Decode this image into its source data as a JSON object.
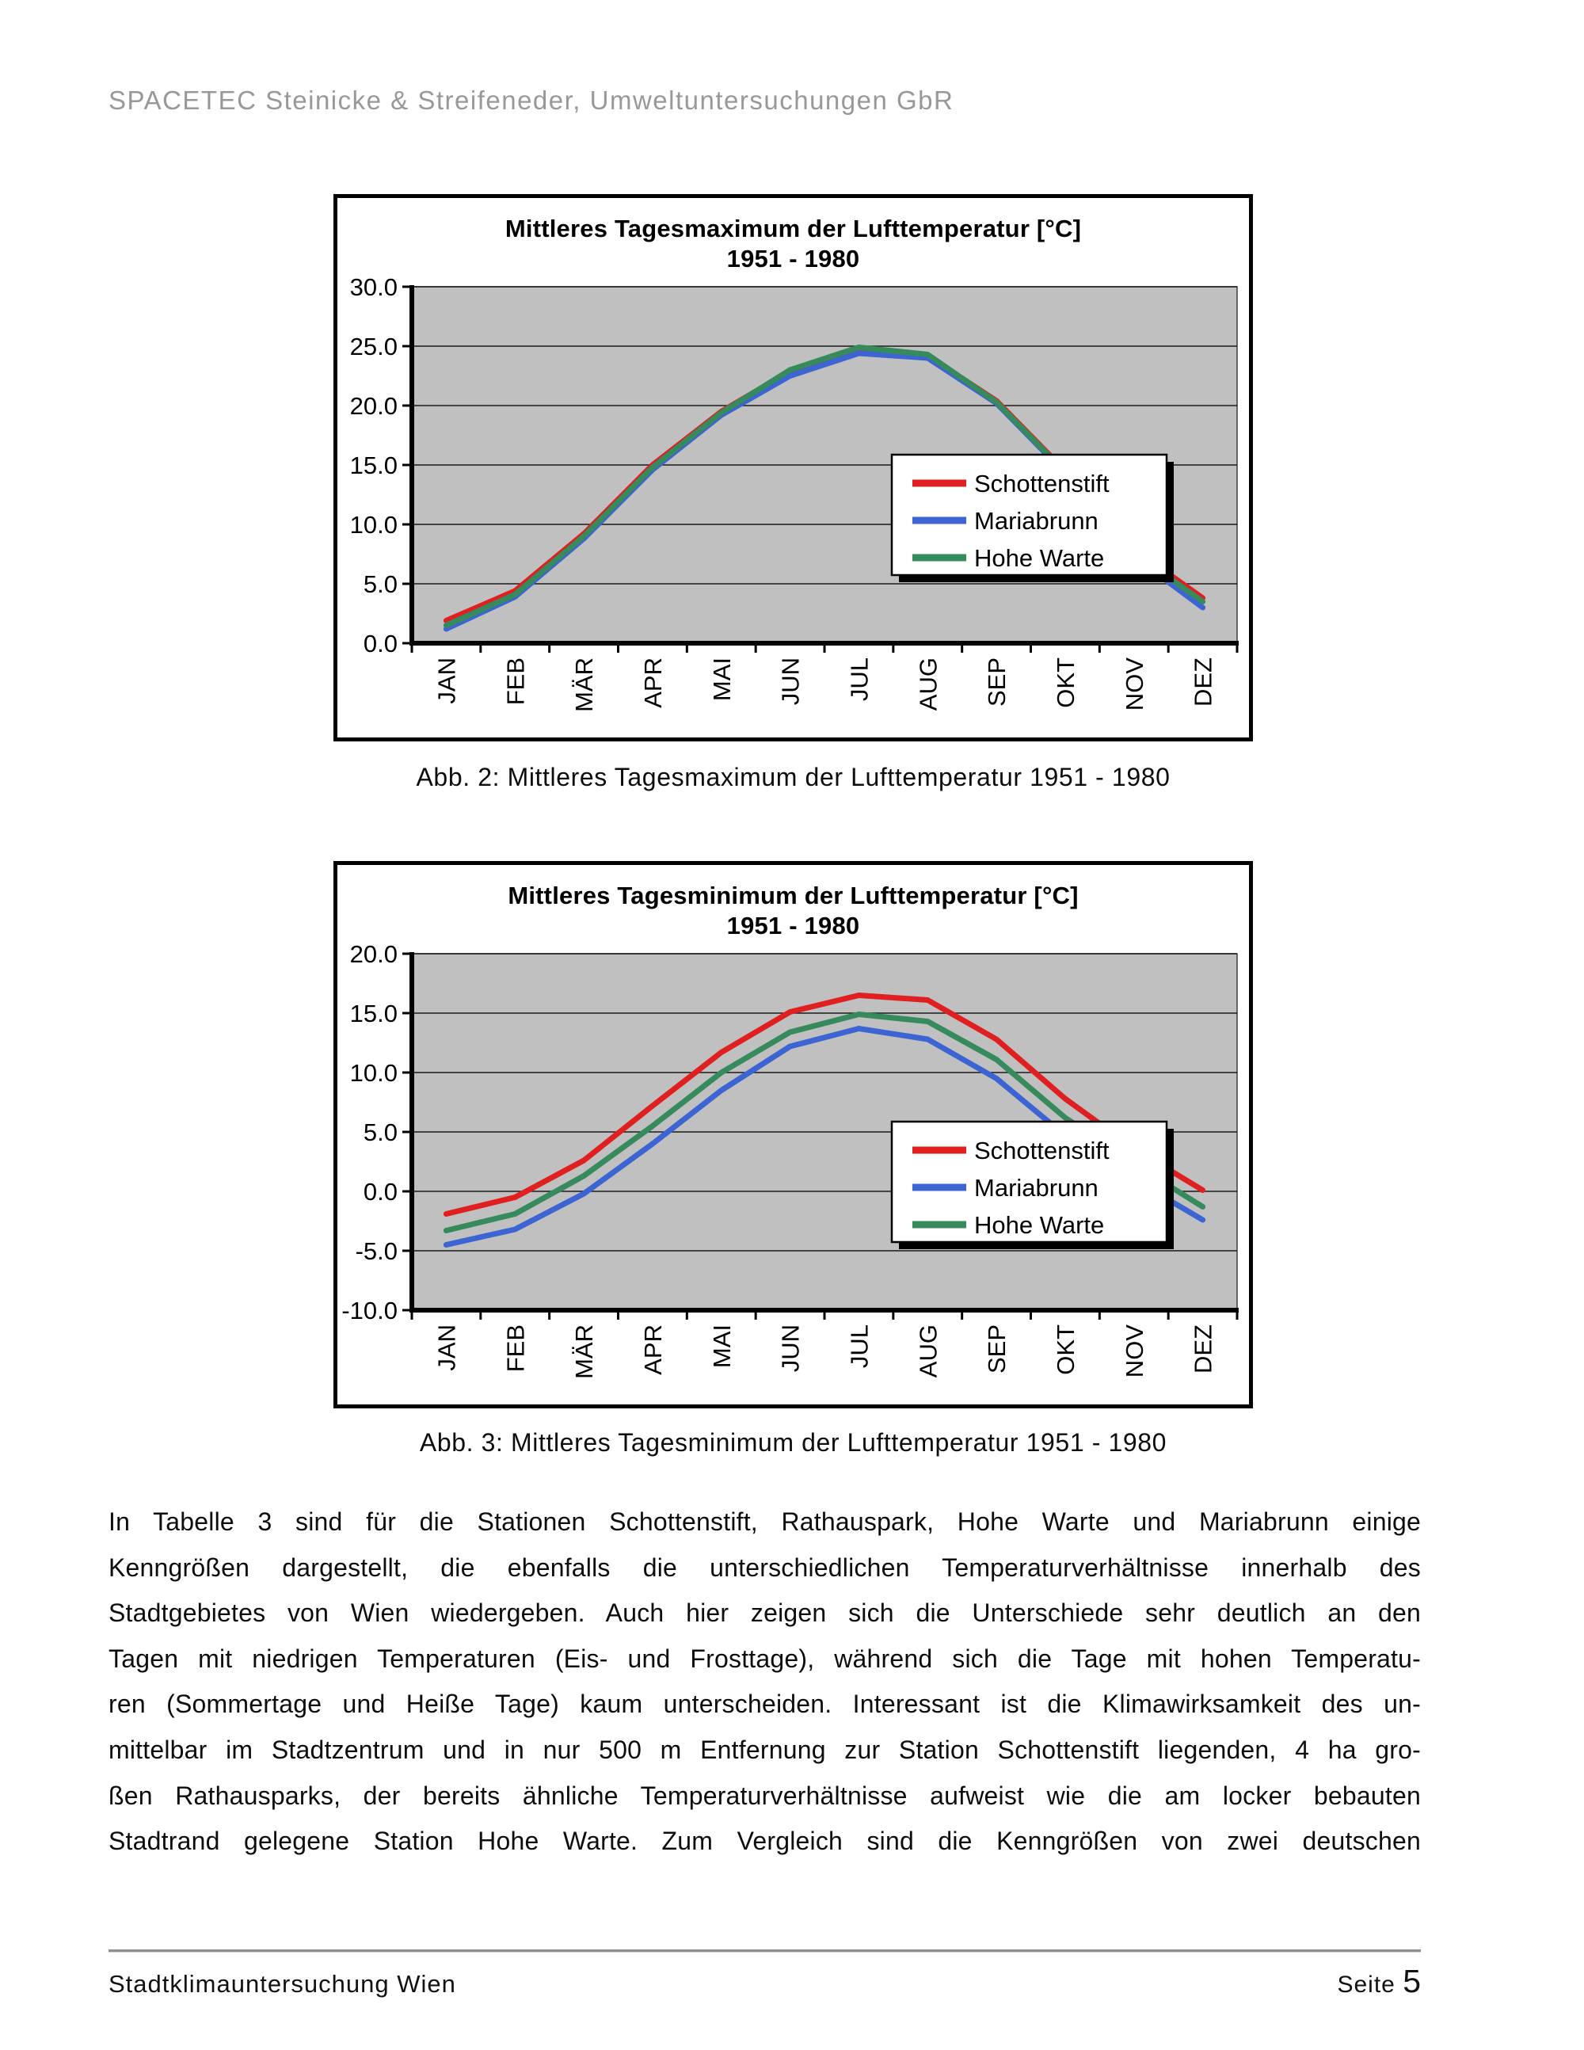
{
  "page": {
    "header": "SPACETEC Steinicke & Streifeneder, Umweltuntersuchungen GbR",
    "footer_left": "Stadtklimauntersuchung Wien",
    "footer_page_label": "Seite",
    "footer_page_number": "5"
  },
  "months": [
    "JAN",
    "FEB",
    "MÄR",
    "APR",
    "MAI",
    "JUN",
    "JUL",
    "AUG",
    "SEP",
    "OKT",
    "NOV",
    "DEZ"
  ],
  "colors": {
    "schottenstift": "#e02020",
    "mariabrunn": "#3c64d2",
    "hohe_warte": "#368a5c",
    "plot_background": "#c0c0c0"
  },
  "chart_data": [
    {
      "type": "line",
      "title": "Mittleres Tagesmaximum der Lufttemperatur [°C]",
      "subtitle": "1951 - 1980",
      "caption": "Abb. 2: Mittleres Tagesmaximum der Lufttemperatur 1951 - 1980",
      "categories": [
        "JAN",
        "FEB",
        "MÄR",
        "APR",
        "MAI",
        "JUN",
        "JUL",
        "AUG",
        "SEP",
        "OKT",
        "NOV",
        "DEZ"
      ],
      "ylim": [
        0,
        30
      ],
      "ytick_step": 5,
      "grid": true,
      "legend_position": "center",
      "plot_bg": "#c0c0c0",
      "series": [
        {
          "name": "Schottenstift",
          "color": "#e02020",
          "values": [
            1.9,
            4.4,
            9.2,
            15.0,
            19.5,
            22.9,
            24.5,
            24.2,
            20.4,
            14.5,
            7.9,
            3.8
          ]
        },
        {
          "name": "Mariabrunn",
          "color": "#3c64d2",
          "values": [
            1.2,
            3.9,
            8.8,
            14.6,
            19.2,
            22.5,
            24.4,
            24.0,
            20.2,
            14.3,
            7.3,
            3.0
          ]
        },
        {
          "name": "Hohe Warte",
          "color": "#368a5c",
          "values": [
            1.5,
            4.1,
            9.0,
            14.8,
            19.4,
            23.0,
            24.9,
            24.3,
            20.3,
            14.4,
            7.6,
            3.5
          ]
        }
      ]
    },
    {
      "type": "line",
      "title": "Mittleres Tagesminimum der Lufttemperatur [°C]",
      "subtitle": "1951 - 1980",
      "caption": "Abb. 3: Mittleres Tagesminimum der Lufttemperatur 1951 - 1980",
      "categories": [
        "JAN",
        "FEB",
        "MÄR",
        "APR",
        "MAI",
        "JUN",
        "JUL",
        "AUG",
        "SEP",
        "OKT",
        "NOV",
        "DEZ"
      ],
      "ylim": [
        -10,
        20
      ],
      "ytick_step": 5,
      "grid": true,
      "legend_position": "center",
      "plot_bg": "#c0c0c0",
      "series": [
        {
          "name": "Schottenstift",
          "color": "#e02020",
          "values": [
            -1.9,
            -0.5,
            2.6,
            7.2,
            11.7,
            15.1,
            16.5,
            16.1,
            12.8,
            7.8,
            3.6,
            0.1
          ]
        },
        {
          "name": "Mariabrunn",
          "color": "#3c64d2",
          "values": [
            -4.5,
            -3.2,
            -0.2,
            4.0,
            8.5,
            12.2,
            13.7,
            12.8,
            9.5,
            4.7,
            1.0,
            -2.4
          ]
        },
        {
          "name": "Hohe Warte",
          "color": "#368a5c",
          "values": [
            -3.3,
            -1.9,
            1.3,
            5.5,
            10.0,
            13.4,
            14.9,
            14.3,
            11.1,
            6.2,
            2.3,
            -1.3
          ]
        }
      ]
    }
  ],
  "paragraph_lines": [
    "In Tabelle 3 sind für die Stationen Schottenstift, Rathauspark, Hohe Warte und Mariabrunn einige",
    "Kenngrößen dargestellt, die ebenfalls die unterschiedlichen Temperaturverhältnisse innerhalb des",
    "Stadtgebietes von Wien wiedergeben. Auch hier zeigen sich die Unterschiede sehr deutlich an den",
    "Tagen mit niedrigen Temperaturen (Eis- und Frosttage), während sich die Tage mit hohen Temperatu-",
    "ren (Sommertage und Heiße Tage) kaum unterscheiden. Interessant ist die Klimawirksamkeit des un-",
    "mittelbar im Stadtzentrum und in nur 500 m Entfernung zur Station Schottenstift liegenden, 4 ha gro-",
    "ßen Rathausparks, der bereits ähnliche Temperaturverhältnisse aufweist wie die am locker bebauten",
    "Stadtrand gelegene Station Hohe Warte. Zum Vergleich sind die Kenngrößen von zwei deutschen"
  ]
}
